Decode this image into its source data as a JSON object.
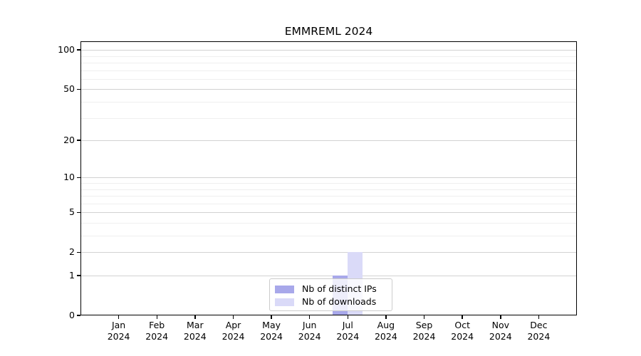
{
  "chart_data": {
    "type": "bar",
    "title": "EMMREML 2024",
    "x_tick_labels": [
      {
        "month": "Jan",
        "year": "2024"
      },
      {
        "month": "Feb",
        "year": "2024"
      },
      {
        "month": "Mar",
        "year": "2024"
      },
      {
        "month": "Apr",
        "year": "2024"
      },
      {
        "month": "May",
        "year": "2024"
      },
      {
        "month": "Jun",
        "year": "2024"
      },
      {
        "month": "Jul",
        "year": "2024"
      },
      {
        "month": "Aug",
        "year": "2024"
      },
      {
        "month": "Sep",
        "year": "2024"
      },
      {
        "month": "Oct",
        "year": "2024"
      },
      {
        "month": "Nov",
        "year": "2024"
      },
      {
        "month": "Dec",
        "year": "2024"
      }
    ],
    "series": [
      {
        "name": "Nb of distinct IPs",
        "color": "#a8a8ea",
        "values": [
          0,
          0,
          0,
          0,
          0,
          0,
          1,
          0,
          0,
          0,
          0,
          0
        ]
      },
      {
        "name": "Nb of downloads",
        "color": "#dadaf8",
        "values": [
          0,
          0,
          0,
          0,
          0,
          0,
          2,
          0,
          0,
          0,
          0,
          0
        ]
      }
    ],
    "yscale": "log1p",
    "y_major_ticks": [
      0,
      1,
      2,
      5,
      10,
      20,
      50,
      100
    ],
    "y_minor_gridlines": [
      3,
      4,
      6,
      7,
      8,
      9,
      30,
      40,
      60,
      70,
      80,
      90
    ],
    "ylim": [
      0,
      117
    ],
    "grid": true,
    "legend_position": "lower-center",
    "colors": {
      "major_grid": "#d2d2d2",
      "minor_grid": "#efefef",
      "axis": "#000000",
      "background": "#ffffff"
    }
  }
}
